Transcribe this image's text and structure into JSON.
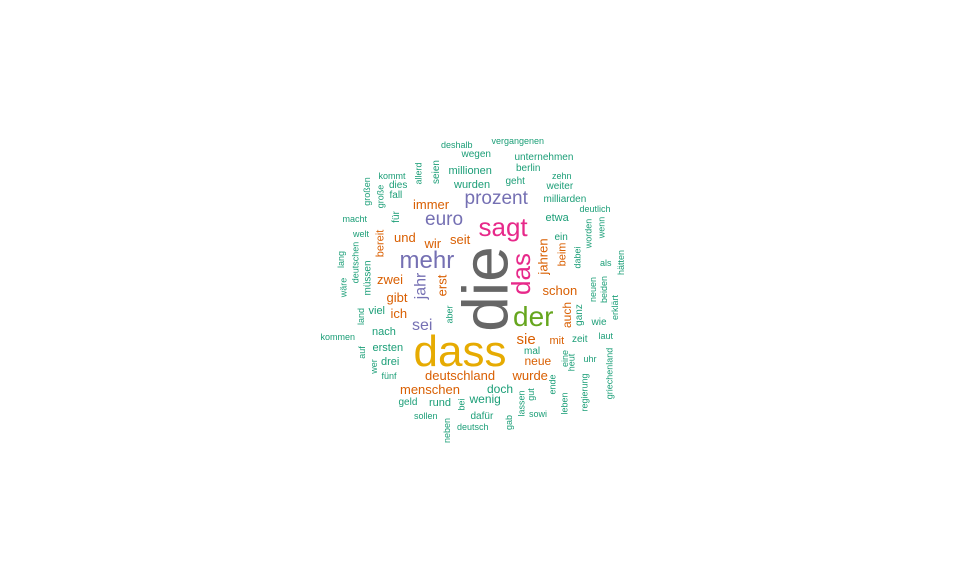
{
  "palette": {
    "gray": "#666666",
    "gold": "#e6ab02",
    "green": "#66a61e",
    "pink": "#e7298a",
    "purple": "#7570b3",
    "orange": "#d95f02",
    "teal": "#1b9e77"
  },
  "words": [
    {
      "text": "die",
      "color": "gray",
      "rot": -90
    },
    {
      "text": "dass",
      "color": "gold",
      "rot": 0
    },
    {
      "text": "der",
      "color": "green",
      "rot": 0
    },
    {
      "text": "das",
      "color": "pink",
      "rot": -90
    },
    {
      "text": "sagt",
      "color": "pink",
      "rot": 0
    },
    {
      "text": "mehr",
      "color": "purple",
      "rot": 0
    },
    {
      "text": "euro",
      "color": "purple",
      "rot": 0
    },
    {
      "text": "prozent",
      "color": "purple",
      "rot": 0
    },
    {
      "text": "jahr",
      "color": "purple",
      "rot": -90
    },
    {
      "text": "sei",
      "color": "purple",
      "rot": 0
    },
    {
      "text": "immer",
      "color": "orange",
      "rot": 0
    },
    {
      "text": "und",
      "color": "orange",
      "rot": 0
    },
    {
      "text": "wir",
      "color": "orange",
      "rot": 0
    },
    {
      "text": "seit",
      "color": "orange",
      "rot": 0
    },
    {
      "text": "zwei",
      "color": "orange",
      "rot": 0
    },
    {
      "text": "erst",
      "color": "orange",
      "rot": -90
    },
    {
      "text": "gibt",
      "color": "orange",
      "rot": 0
    },
    {
      "text": "ich",
      "color": "orange",
      "rot": 0
    },
    {
      "text": "bereit",
      "color": "orange",
      "rot": -90
    },
    {
      "text": "jahren",
      "color": "orange",
      "rot": -90
    },
    {
      "text": "schon",
      "color": "orange",
      "rot": 0
    },
    {
      "text": "beim",
      "color": "orange",
      "rot": -90
    },
    {
      "text": "auch",
      "color": "orange",
      "rot": -90
    },
    {
      "text": "sie",
      "color": "orange",
      "rot": 0
    },
    {
      "text": "mit",
      "color": "orange",
      "rot": 0
    },
    {
      "text": "neue",
      "color": "orange",
      "rot": 0
    },
    {
      "text": "wurde",
      "color": "orange",
      "rot": 0
    },
    {
      "text": "deutschland",
      "color": "orange",
      "rot": 0
    },
    {
      "text": "menschen",
      "color": "orange",
      "rot": 0
    },
    {
      "text": "deshalb",
      "color": "teal",
      "rot": 0
    },
    {
      "text": "vergangenen",
      "color": "teal",
      "rot": 0
    },
    {
      "text": "wegen",
      "color": "teal",
      "rot": 0
    },
    {
      "text": "unternehmen",
      "color": "teal",
      "rot": 0
    },
    {
      "text": "berlin",
      "color": "teal",
      "rot": 0
    },
    {
      "text": "allerd",
      "color": "teal",
      "rot": -90
    },
    {
      "text": "seien",
      "color": "teal",
      "rot": -90
    },
    {
      "text": "millionen",
      "color": "teal",
      "rot": 0
    },
    {
      "text": "kommt",
      "color": "teal",
      "rot": 0
    },
    {
      "text": "zehn",
      "color": "teal",
      "rot": 0
    },
    {
      "text": "dies",
      "color": "teal",
      "rot": 0
    },
    {
      "text": "wurden",
      "color": "teal",
      "rot": 0
    },
    {
      "text": "geht",
      "color": "teal",
      "rot": 0
    },
    {
      "text": "weiter",
      "color": "teal",
      "rot": 0
    },
    {
      "text": "großen",
      "color": "teal",
      "rot": -90
    },
    {
      "text": "große",
      "color": "teal",
      "rot": -90
    },
    {
      "text": "fall",
      "color": "teal",
      "rot": 0
    },
    {
      "text": "milliarden",
      "color": "teal",
      "rot": 0
    },
    {
      "text": "deutlich",
      "color": "teal",
      "rot": 0
    },
    {
      "text": "macht",
      "color": "teal",
      "rot": 0
    },
    {
      "text": "für",
      "color": "teal",
      "rot": -90
    },
    {
      "text": "etwa",
      "color": "teal",
      "rot": 0
    },
    {
      "text": "welt",
      "color": "teal",
      "rot": 0
    },
    {
      "text": "worden",
      "color": "teal",
      "rot": -90
    },
    {
      "text": "wenn",
      "color": "teal",
      "rot": -90
    },
    {
      "text": "ein",
      "color": "teal",
      "rot": 0
    },
    {
      "text": "lang",
      "color": "teal",
      "rot": -90
    },
    {
      "text": "deutschen",
      "color": "teal",
      "rot": -90
    },
    {
      "text": "dabei",
      "color": "teal",
      "rot": -90
    },
    {
      "text": "hätten",
      "color": "teal",
      "rot": -90
    },
    {
      "text": "als",
      "color": "teal",
      "rot": 0
    },
    {
      "text": "müssen",
      "color": "teal",
      "rot": -90
    },
    {
      "text": "wäre",
      "color": "teal",
      "rot": -90
    },
    {
      "text": "neuen",
      "color": "teal",
      "rot": -90
    },
    {
      "text": "beiden",
      "color": "teal",
      "rot": -90
    },
    {
      "text": "erklärt",
      "color": "teal",
      "rot": -90
    },
    {
      "text": "land",
      "color": "teal",
      "rot": -90
    },
    {
      "text": "viel",
      "color": "teal",
      "rot": 0
    },
    {
      "text": "aber",
      "color": "teal",
      "rot": -90
    },
    {
      "text": "ganz",
      "color": "teal",
      "rot": -90
    },
    {
      "text": "wie",
      "color": "teal",
      "rot": 0
    },
    {
      "text": "nach",
      "color": "teal",
      "rot": 0
    },
    {
      "text": "kommen",
      "color": "teal",
      "rot": 0
    },
    {
      "text": "zeit",
      "color": "teal",
      "rot": 0
    },
    {
      "text": "laut",
      "color": "teal",
      "rot": 0
    },
    {
      "text": "auf",
      "color": "teal",
      "rot": -90
    },
    {
      "text": "ersten",
      "color": "teal",
      "rot": 0
    },
    {
      "text": "mal",
      "color": "teal",
      "rot": 0
    },
    {
      "text": "eine",
      "color": "teal",
      "rot": -90
    },
    {
      "text": "heut",
      "color": "teal",
      "rot": -90
    },
    {
      "text": "wer",
      "color": "teal",
      "rot": -90
    },
    {
      "text": "drei",
      "color": "teal",
      "rot": 0
    },
    {
      "text": "uhr",
      "color": "teal",
      "rot": 0
    },
    {
      "text": "griechenland",
      "color": "teal",
      "rot": -90
    },
    {
      "text": "fünf",
      "color": "teal",
      "rot": 0
    },
    {
      "text": "ende",
      "color": "teal",
      "rot": -90
    },
    {
      "text": "doch",
      "color": "teal",
      "rot": 0
    },
    {
      "text": "gut",
      "color": "teal",
      "rot": -90
    },
    {
      "text": "lassen",
      "color": "teal",
      "rot": -90
    },
    {
      "text": "regierung",
      "color": "teal",
      "rot": -90
    },
    {
      "text": "geld",
      "color": "teal",
      "rot": 0
    },
    {
      "text": "rund",
      "color": "teal",
      "rot": 0
    },
    {
      "text": "bei",
      "color": "teal",
      "rot": -90
    },
    {
      "text": "wenig",
      "color": "teal",
      "rot": 0
    },
    {
      "text": "leben",
      "color": "teal",
      "rot": -90
    },
    {
      "text": "sollen",
      "color": "teal",
      "rot": 0
    },
    {
      "text": "dafür",
      "color": "teal",
      "rot": 0
    },
    {
      "text": "sowi",
      "color": "teal",
      "rot": 0
    },
    {
      "text": "gab",
      "color": "teal",
      "rot": -90
    },
    {
      "text": "neben",
      "color": "teal",
      "rot": -90
    },
    {
      "text": "deutsch",
      "color": "teal",
      "rot": 0
    }
  ]
}
